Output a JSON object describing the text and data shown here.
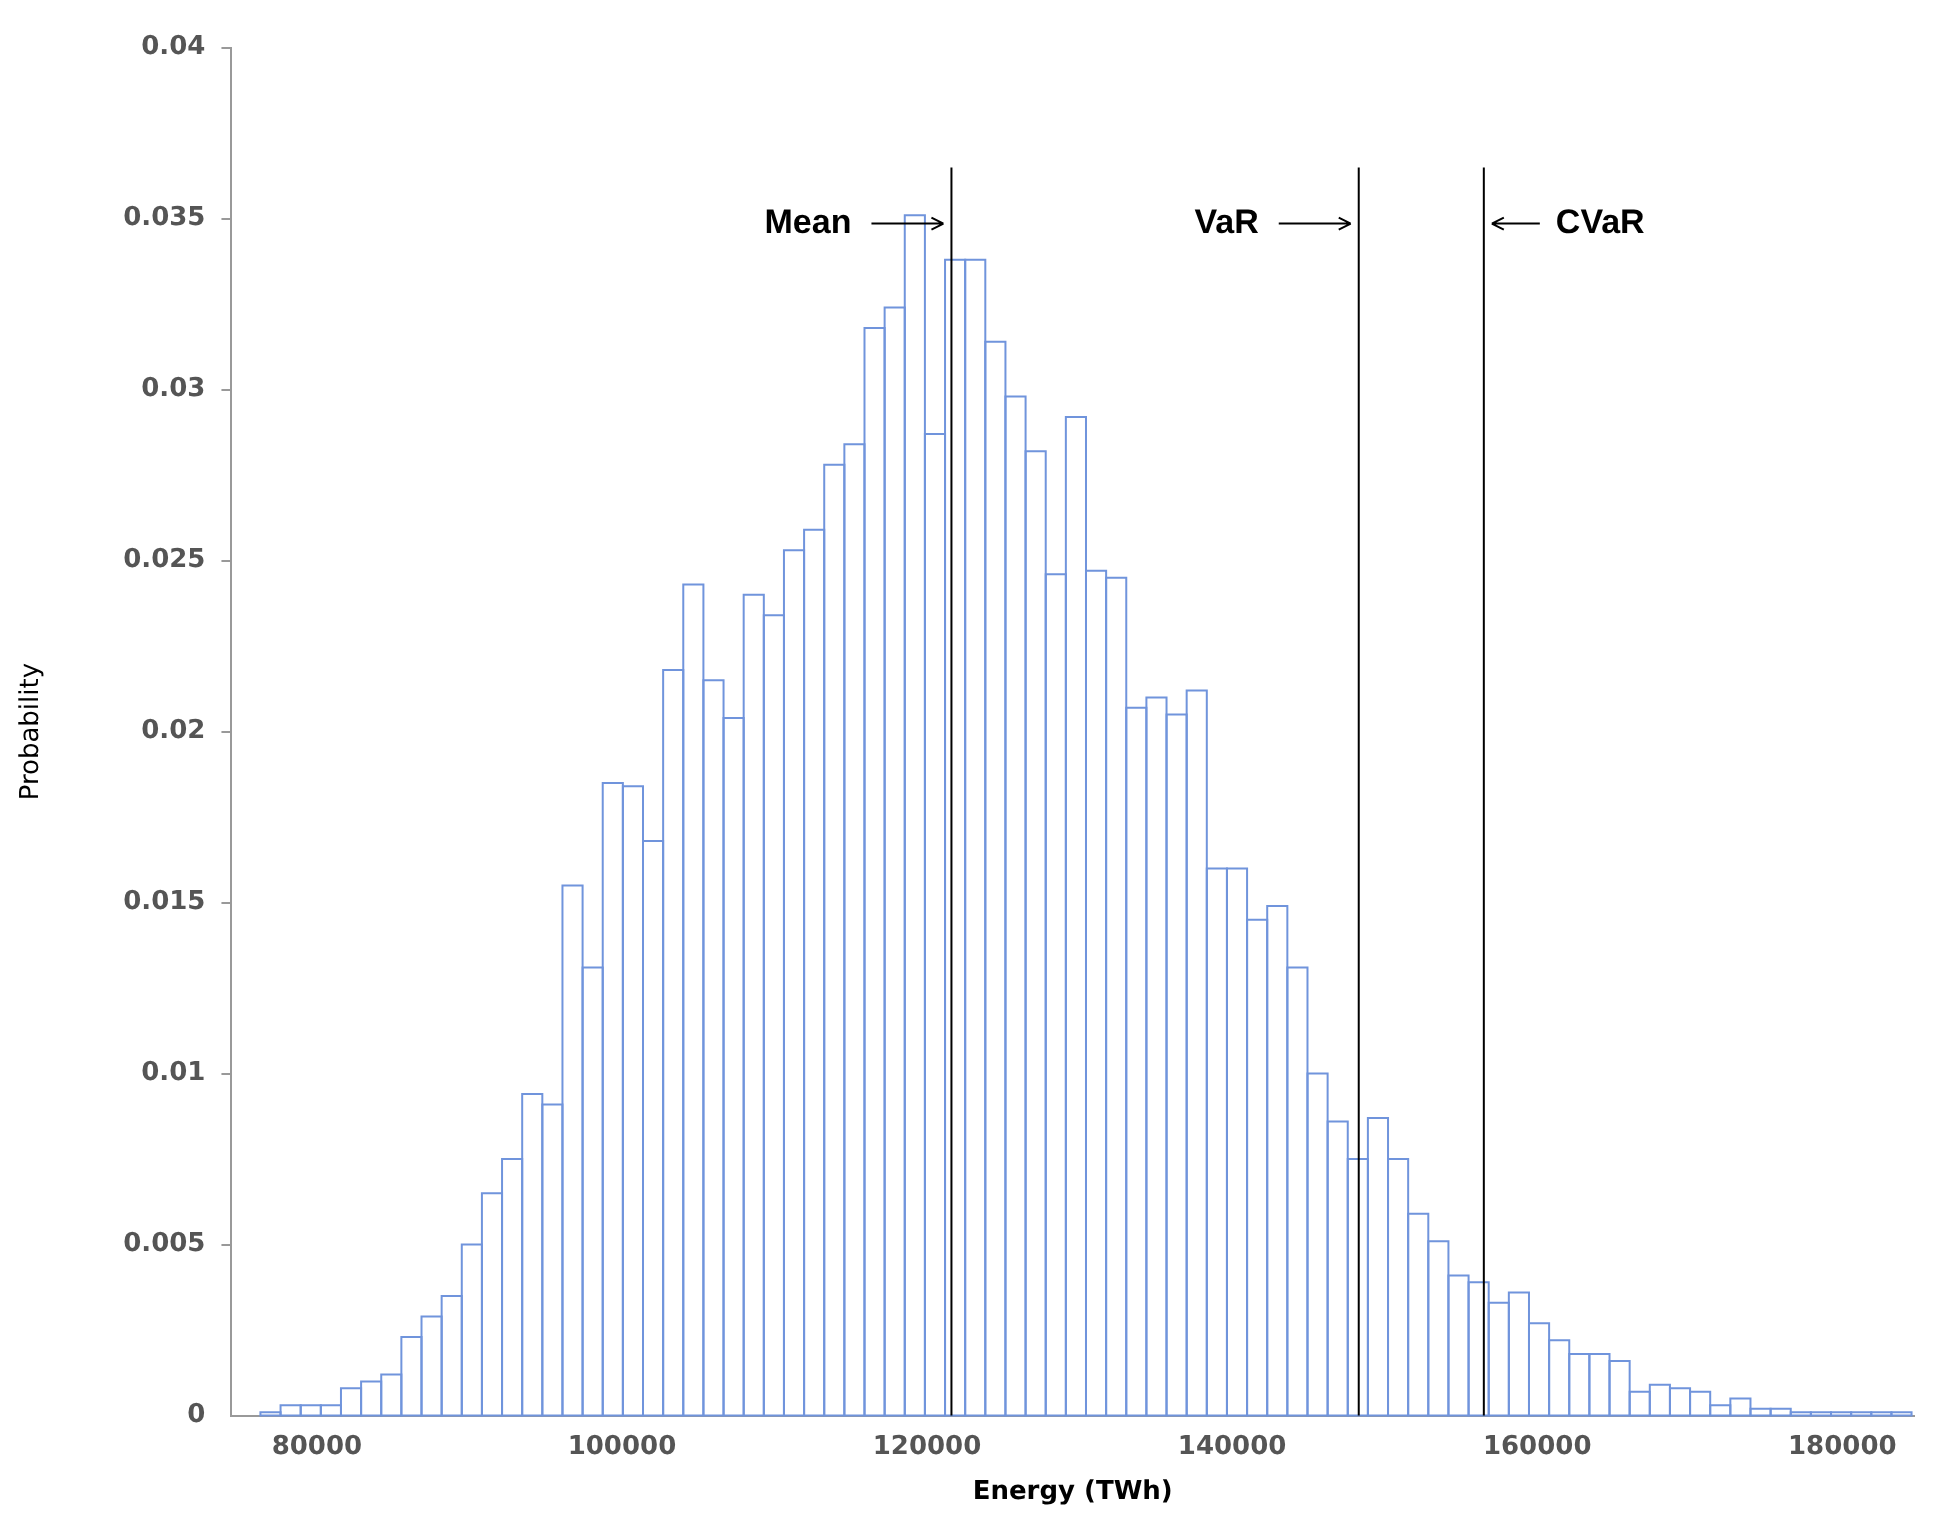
{
  "chart_data": {
    "type": "histogram",
    "xlabel": "Energy (TWh)",
    "ylabel": "Probability",
    "bins": [
      76300,
      77620,
      78940,
      80260,
      81580,
      82900,
      84220,
      85540,
      86860,
      88180,
      89500,
      90820,
      92140,
      93460,
      94780,
      96100,
      97420,
      98740,
      100060,
      101380,
      102700,
      104020,
      105340,
      106660,
      107980,
      109300,
      110620,
      111940,
      113260,
      114580,
      115900,
      117220,
      118540,
      119860,
      121180,
      122500,
      123820,
      125140,
      126460,
      127780,
      129100,
      130420,
      131740,
      133060,
      134380,
      135700,
      137020,
      138340,
      139660,
      140980,
      142300,
      143620,
      144940,
      146260,
      147580,
      148900,
      150220,
      151540,
      152860,
      154180,
      155500,
      156820,
      158140,
      159460,
      160780,
      162100,
      163420,
      164740,
      166060,
      167380,
      168700,
      170020,
      171340,
      172660,
      173980,
      175300,
      176620,
      177940,
      179260,
      180580,
      181900,
      183220,
      184540
    ],
    "values": [
      0.0001,
      0.0003,
      0.0003,
      0.0003,
      0.0008,
      0.001,
      0.0012,
      0.0023,
      0.0029,
      0.0035,
      0.005,
      0.0065,
      0.0075,
      0.0094,
      0.0091,
      0.0155,
      0.0131,
      0.0185,
      0.0184,
      0.0168,
      0.0218,
      0.0243,
      0.0215,
      0.0204,
      0.024,
      0.0234,
      0.0253,
      0.0259,
      0.0278,
      0.0284,
      0.0318,
      0.0324,
      0.0351,
      0.0287,
      0.0338,
      0.0338,
      0.0314,
      0.0298,
      0.0282,
      0.0246,
      0.0292,
      0.0247,
      0.0245,
      0.0207,
      0.021,
      0.0205,
      0.0212,
      0.016,
      0.016,
      0.0145,
      0.0149,
      0.0131,
      0.01,
      0.0086,
      0.0075,
      0.0087,
      0.0075,
      0.0059,
      0.0051,
      0.0041,
      0.0039,
      0.0033,
      0.0036,
      0.0027,
      0.0022,
      0.0018,
      0.0018,
      0.0016,
      0.0007,
      0.0009,
      0.0008,
      0.0007,
      0.0003,
      0.0005,
      0.0002,
      0.0002,
      0.0001,
      0.0001,
      0.0001,
      0.0001,
      0.0001,
      0.0001
    ],
    "color": "#7094dc",
    "xlim": [
      74400,
      184700
    ],
    "xticks": [
      80000,
      100000,
      120000,
      140000,
      160000,
      180000
    ],
    "ylim": [
      0,
      0.04
    ],
    "yticks": [
      0,
      0.005,
      0.01,
      0.015,
      0.02,
      0.025,
      0.03,
      0.035,
      0.04
    ],
    "grid": false,
    "legend": false,
    "ref_lines": [
      {
        "axis": "x",
        "value": 121600,
        "label": "Mean",
        "color": "#000000"
      },
      {
        "axis": "x",
        "value": 148300,
        "label": "VaR",
        "color": "#000000"
      },
      {
        "axis": "x",
        "value": 156500,
        "label": "CVaR",
        "color": "#000000"
      }
    ]
  }
}
